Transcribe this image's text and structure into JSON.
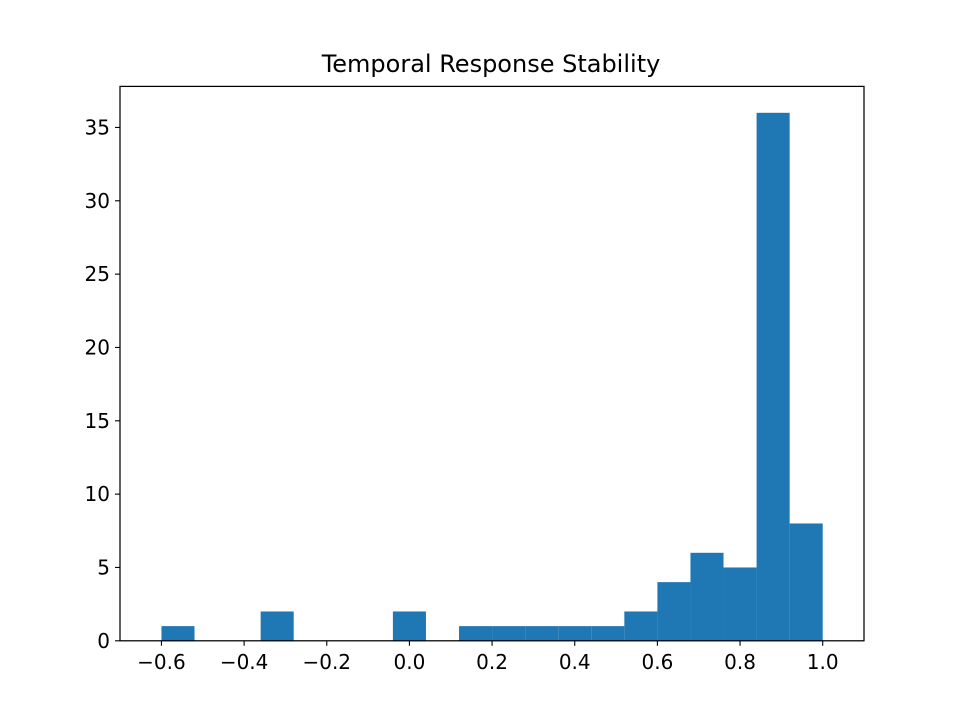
{
  "chart_data": {
    "type": "bar",
    "title": "Temporal Response Stability",
    "xlabel": "",
    "ylabel": "",
    "xlim": [
      -0.7003,
      1.0999
    ],
    "ylim": [
      0,
      37.8
    ],
    "bar_color": "#1f77b4",
    "grid": false,
    "x_ticks": [
      {
        "value": -0.6,
        "label": "−0.6"
      },
      {
        "value": -0.4,
        "label": "−0.4"
      },
      {
        "value": -0.2,
        "label": "−0.2"
      },
      {
        "value": 0.0,
        "label": "0.0"
      },
      {
        "value": 0.2,
        "label": "0.2"
      },
      {
        "value": 0.4,
        "label": "0.4"
      },
      {
        "value": 0.6,
        "label": "0.6"
      },
      {
        "value": 0.8,
        "label": "0.8"
      },
      {
        "value": 1.0,
        "label": "1.0"
      }
    ],
    "y_ticks": [
      {
        "value": 0,
        "label": "0"
      },
      {
        "value": 5,
        "label": "5"
      },
      {
        "value": 10,
        "label": "10"
      },
      {
        "value": 15,
        "label": "15"
      },
      {
        "value": 20,
        "label": "20"
      },
      {
        "value": 25,
        "label": "25"
      },
      {
        "value": 30,
        "label": "30"
      },
      {
        "value": 35,
        "label": "35"
      }
    ],
    "bin_edges": [
      -0.6,
      -0.52,
      -0.44,
      -0.36,
      -0.28,
      -0.2,
      -0.12,
      -0.04,
      0.04,
      0.12,
      0.2,
      0.28,
      0.36,
      0.44,
      0.52,
      0.6,
      0.68,
      0.76,
      0.84,
      0.92,
      1.0
    ],
    "counts": [
      1,
      0,
      0,
      2,
      0,
      0,
      0,
      2,
      0,
      1,
      1,
      1,
      1,
      1,
      2,
      4,
      6,
      5,
      36,
      8
    ]
  }
}
